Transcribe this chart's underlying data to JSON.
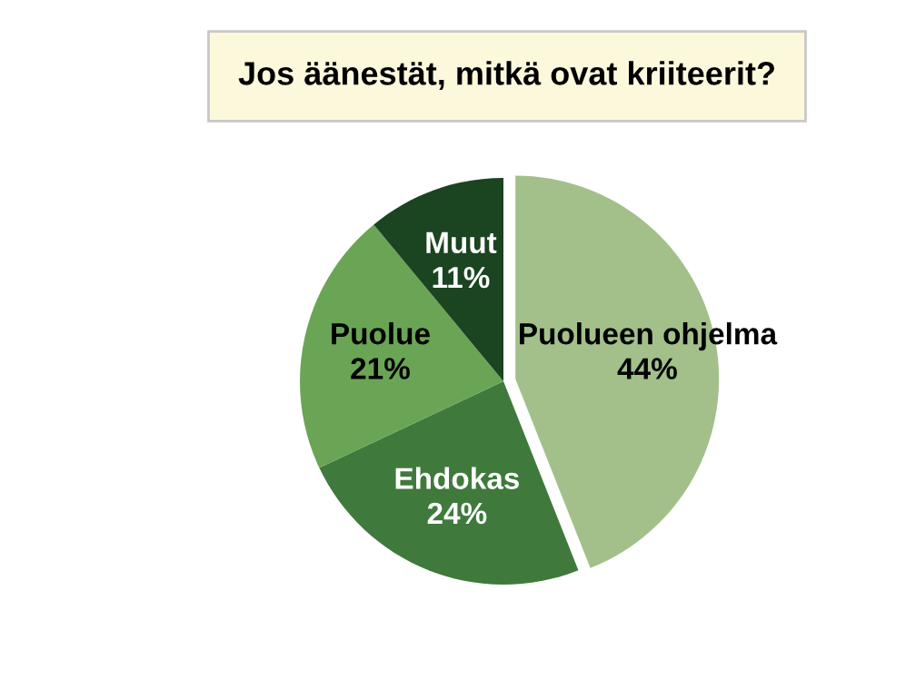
{
  "chart_data": {
    "type": "pie",
    "title": "Jos äänestät, mitkä ovat kriiteerit?",
    "categories": [
      "Puolueen ohjelma",
      "Ehdokas",
      "Puolue",
      "Muut"
    ],
    "values": [
      44,
      24,
      21,
      11
    ],
    "value_labels": [
      "44%",
      "24%",
      "21%",
      "11%"
    ],
    "colors": [
      "#a3c08a",
      "#3f7a3c",
      "#6aa555",
      "#1b4420"
    ],
    "legend": false
  }
}
